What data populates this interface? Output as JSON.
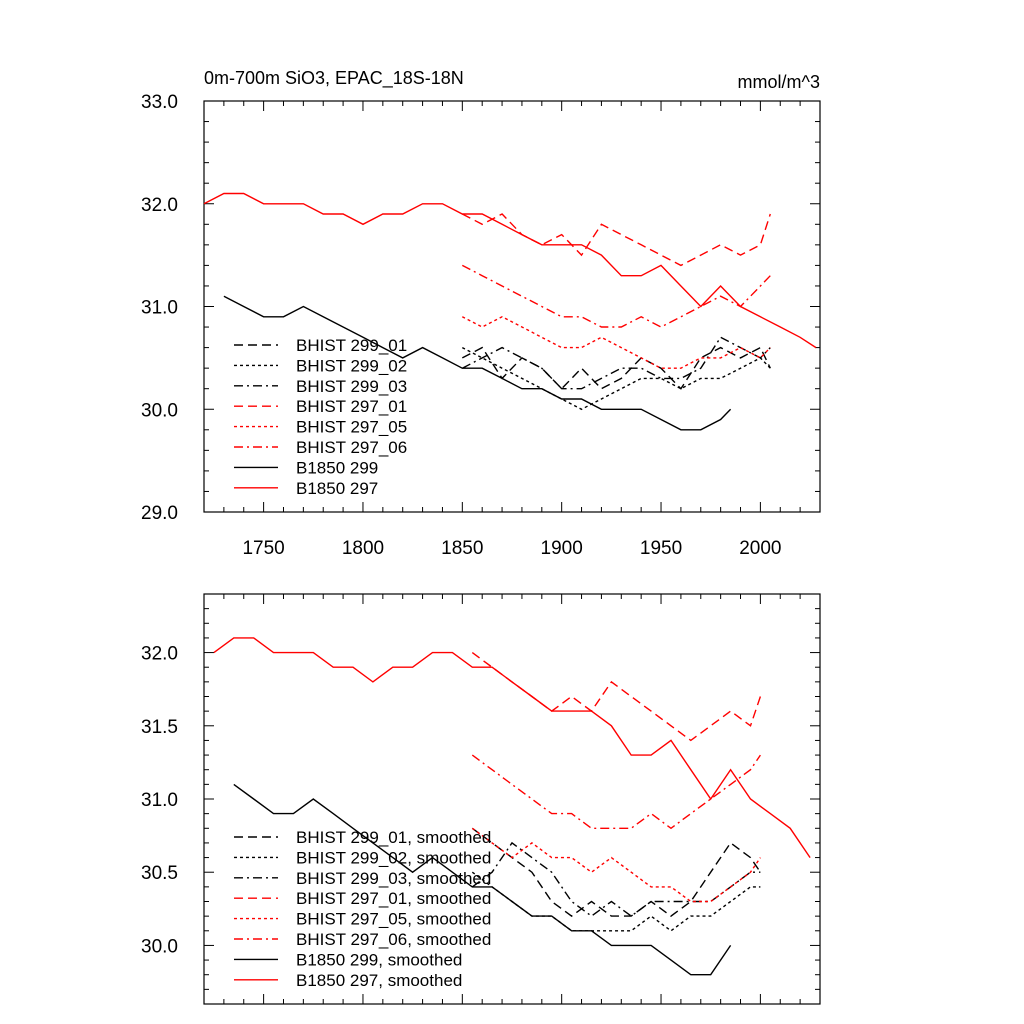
{
  "figure": {
    "background": "#ffffff"
  },
  "chart_data": [
    {
      "type": "line",
      "title": "0m-700m SiO3, EPAC_18S-18N",
      "units": "mmol/m^3",
      "xlim": [
        1720,
        2030
      ],
      "ylim": [
        29.0,
        33.0
      ],
      "x_ticks": [
        1750,
        1800,
        1850,
        1900,
        1950,
        2000
      ],
      "y_ticks": [
        29.0,
        30.0,
        31.0,
        32.0,
        33.0
      ],
      "y_tick_labels": [
        "29.0",
        "30.0",
        "31.0",
        "32.0",
        "33.0"
      ],
      "legend_placement": "lower-left",
      "series": [
        {
          "name": "BHIST 299_01",
          "color": "#000000",
          "dash": "dash",
          "x": [
            1850,
            1860,
            1870,
            1880,
            1890,
            1900,
            1910,
            1920,
            1930,
            1940,
            1950,
            1960,
            1970,
            1980,
            1990,
            2000,
            2005
          ],
          "y": [
            30.5,
            30.6,
            30.3,
            30.5,
            30.4,
            30.2,
            30.4,
            30.2,
            30.3,
            30.5,
            30.4,
            30.2,
            30.5,
            30.6,
            30.5,
            30.6,
            30.4
          ]
        },
        {
          "name": "BHIST 299_02",
          "color": "#000000",
          "dash": "dot",
          "x": [
            1850,
            1860,
            1870,
            1880,
            1890,
            1900,
            1910,
            1920,
            1930,
            1940,
            1950,
            1960,
            1970,
            1980,
            1990,
            2000,
            2005
          ],
          "y": [
            30.6,
            30.5,
            30.4,
            30.3,
            30.2,
            30.1,
            30.0,
            30.1,
            30.2,
            30.3,
            30.3,
            30.2,
            30.3,
            30.3,
            30.4,
            30.5,
            30.4
          ]
        },
        {
          "name": "BHIST 299_03",
          "color": "#000000",
          "dash": "dashdot",
          "x": [
            1850,
            1860,
            1870,
            1880,
            1890,
            1900,
            1910,
            1920,
            1930,
            1940,
            1950,
            1960,
            1970,
            1980,
            1990,
            2000,
            2005
          ],
          "y": [
            30.4,
            30.5,
            30.6,
            30.5,
            30.4,
            30.2,
            30.2,
            30.3,
            30.4,
            30.4,
            30.3,
            30.3,
            30.4,
            30.7,
            30.6,
            30.5,
            30.6
          ]
        },
        {
          "name": "BHIST 297_01",
          "color": "#ff0000",
          "dash": "dash",
          "x": [
            1850,
            1860,
            1870,
            1880,
            1890,
            1900,
            1910,
            1920,
            1930,
            1940,
            1950,
            1960,
            1970,
            1980,
            1990,
            2000,
            2005
          ],
          "y": [
            31.9,
            31.8,
            31.9,
            31.7,
            31.6,
            31.7,
            31.5,
            31.8,
            31.7,
            31.6,
            31.5,
            31.4,
            31.5,
            31.6,
            31.5,
            31.6,
            31.9
          ]
        },
        {
          "name": "BHIST 297_05",
          "color": "#ff0000",
          "dash": "dot",
          "x": [
            1850,
            1860,
            1870,
            1880,
            1890,
            1900,
            1910,
            1920,
            1930,
            1940,
            1950,
            1960,
            1970,
            1980,
            1990,
            2000,
            2005
          ],
          "y": [
            30.9,
            30.8,
            30.9,
            30.8,
            30.7,
            30.6,
            30.6,
            30.7,
            30.6,
            30.5,
            30.4,
            30.4,
            30.5,
            30.5,
            30.6,
            30.5,
            30.6
          ]
        },
        {
          "name": "BHIST 297_06",
          "color": "#ff0000",
          "dash": "dashdot",
          "x": [
            1850,
            1860,
            1870,
            1880,
            1890,
            1900,
            1910,
            1920,
            1930,
            1940,
            1950,
            1960,
            1970,
            1980,
            1990,
            2000,
            2005
          ],
          "y": [
            31.4,
            31.3,
            31.2,
            31.1,
            31.0,
            30.9,
            30.9,
            30.8,
            30.8,
            30.9,
            30.8,
            30.9,
            31.0,
            31.1,
            31.0,
            31.2,
            31.3
          ]
        },
        {
          "name": "B1850 299",
          "color": "#000000",
          "dash": "solid",
          "x": [
            1730,
            1740,
            1750,
            1760,
            1770,
            1780,
            1790,
            1800,
            1810,
            1820,
            1830,
            1840,
            1850,
            1860,
            1870,
            1880,
            1890,
            1900,
            1910,
            1920,
            1930,
            1940,
            1950,
            1960,
            1970,
            1980,
            1985
          ],
          "y": [
            31.1,
            31.0,
            30.9,
            30.9,
            31.0,
            30.9,
            30.8,
            30.7,
            30.6,
            30.5,
            30.6,
            30.5,
            30.4,
            30.4,
            30.3,
            30.2,
            30.2,
            30.1,
            30.1,
            30.0,
            30.0,
            30.0,
            29.9,
            29.8,
            29.8,
            29.9,
            30.0
          ]
        },
        {
          "name": "B1850 297",
          "color": "#ff0000",
          "dash": "solid",
          "x": [
            1720,
            1730,
            1740,
            1750,
            1760,
            1770,
            1780,
            1790,
            1800,
            1810,
            1820,
            1830,
            1840,
            1850,
            1860,
            1870,
            1880,
            1890,
            1900,
            1910,
            1920,
            1930,
            1940,
            1950,
            1960,
            1970,
            1980,
            1990,
            2000,
            2010,
            2020,
            2028
          ],
          "y": [
            32.0,
            32.1,
            32.1,
            32.0,
            32.0,
            32.0,
            31.9,
            31.9,
            31.8,
            31.9,
            31.9,
            32.0,
            32.0,
            31.9,
            31.9,
            31.8,
            31.7,
            31.6,
            31.6,
            31.6,
            31.5,
            31.3,
            31.3,
            31.4,
            31.2,
            31.0,
            31.2,
            31.0,
            30.9,
            30.8,
            30.7,
            30.6
          ]
        }
      ]
    },
    {
      "type": "line",
      "title": "",
      "units": "",
      "xlim": [
        1720,
        2030
      ],
      "ylim": [
        29.6,
        32.4
      ],
      "x_ticks": [
        1750,
        1800,
        1850,
        1900,
        1950,
        2000
      ],
      "y_ticks": [
        30.0,
        30.5,
        31.0,
        31.5,
        32.0
      ],
      "y_tick_labels": [
        "30.0",
        "30.5",
        "31.0",
        "31.5",
        "32.0"
      ],
      "legend_placement": "lower-left",
      "series": [
        {
          "name": "BHIST 299_01, smoothed",
          "color": "#000000",
          "dash": "dash",
          "x": [
            1855,
            1865,
            1875,
            1885,
            1895,
            1905,
            1915,
            1925,
            1935,
            1945,
            1955,
            1965,
            1975,
            1985,
            1995,
            2000
          ],
          "y": [
            30.8,
            30.7,
            30.6,
            30.5,
            30.3,
            30.2,
            30.3,
            30.2,
            30.2,
            30.3,
            30.2,
            30.3,
            30.5,
            30.7,
            30.6,
            30.5
          ]
        },
        {
          "name": "BHIST 299_02, smoothed",
          "color": "#000000",
          "dash": "dot",
          "x": [
            1855,
            1865,
            1875,
            1885,
            1895,
            1905,
            1915,
            1925,
            1935,
            1945,
            1955,
            1965,
            1975,
            1985,
            1995,
            2000
          ],
          "y": [
            30.5,
            30.4,
            30.3,
            30.2,
            30.2,
            30.1,
            30.1,
            30.1,
            30.1,
            30.2,
            30.1,
            30.2,
            30.2,
            30.3,
            30.4,
            30.4
          ]
        },
        {
          "name": "BHIST 299_03, smoothed",
          "color": "#000000",
          "dash": "dashdot",
          "x": [
            1855,
            1865,
            1875,
            1885,
            1895,
            1905,
            1915,
            1925,
            1935,
            1945,
            1955,
            1965,
            1975,
            1985,
            1995,
            2000
          ],
          "y": [
            30.4,
            30.5,
            30.7,
            30.6,
            30.5,
            30.3,
            30.2,
            30.3,
            30.2,
            30.3,
            30.3,
            30.3,
            30.3,
            30.4,
            30.5,
            30.5
          ]
        },
        {
          "name": "BHIST 297_01, smoothed",
          "color": "#ff0000",
          "dash": "dash",
          "x": [
            1855,
            1865,
            1875,
            1885,
            1895,
            1905,
            1915,
            1925,
            1935,
            1945,
            1955,
            1965,
            1975,
            1985,
            1995,
            2000
          ],
          "y": [
            32.0,
            31.9,
            31.8,
            31.7,
            31.6,
            31.7,
            31.6,
            31.8,
            31.7,
            31.6,
            31.5,
            31.4,
            31.5,
            31.6,
            31.5,
            31.7
          ]
        },
        {
          "name": "BHIST 297_05, smoothed",
          "color": "#ff0000",
          "dash": "dot",
          "x": [
            1855,
            1865,
            1875,
            1885,
            1895,
            1905,
            1915,
            1925,
            1935,
            1945,
            1955,
            1965,
            1975,
            1985,
            1995,
            2000
          ],
          "y": [
            30.8,
            30.7,
            30.6,
            30.7,
            30.6,
            30.6,
            30.5,
            30.6,
            30.5,
            30.4,
            30.4,
            30.3,
            30.3,
            30.4,
            30.5,
            30.6
          ]
        },
        {
          "name": "BHIST 297_06, smoothed",
          "color": "#ff0000",
          "dash": "dashdot",
          "x": [
            1855,
            1865,
            1875,
            1885,
            1895,
            1905,
            1915,
            1925,
            1935,
            1945,
            1955,
            1965,
            1975,
            1985,
            1995,
            2000
          ],
          "y": [
            31.3,
            31.2,
            31.1,
            31.0,
            30.9,
            30.9,
            30.8,
            30.8,
            30.8,
            30.9,
            30.8,
            30.9,
            31.0,
            31.1,
            31.2,
            31.3
          ]
        },
        {
          "name": "B1850 299, smoothed",
          "color": "#000000",
          "dash": "solid",
          "x": [
            1735,
            1745,
            1755,
            1765,
            1775,
            1785,
            1795,
            1805,
            1815,
            1825,
            1835,
            1845,
            1855,
            1865,
            1875,
            1885,
            1895,
            1905,
            1915,
            1925,
            1935,
            1945,
            1955,
            1965,
            1975,
            1985
          ],
          "y": [
            31.1,
            31.0,
            30.9,
            30.9,
            31.0,
            30.9,
            30.8,
            30.7,
            30.6,
            30.5,
            30.6,
            30.5,
            30.4,
            30.4,
            30.3,
            30.2,
            30.2,
            30.1,
            30.1,
            30.0,
            30.0,
            30.0,
            29.9,
            29.8,
            29.8,
            30.0
          ]
        },
        {
          "name": "B1850 297, smoothed",
          "color": "#ff0000",
          "dash": "solid",
          "x": [
            1725,
            1735,
            1745,
            1755,
            1765,
            1775,
            1785,
            1795,
            1805,
            1815,
            1825,
            1835,
            1845,
            1855,
            1865,
            1875,
            1885,
            1895,
            1905,
            1915,
            1925,
            1935,
            1945,
            1955,
            1965,
            1975,
            1985,
            1995,
            2005,
            2015,
            2025
          ],
          "y": [
            32.0,
            32.1,
            32.1,
            32.0,
            32.0,
            32.0,
            31.9,
            31.9,
            31.8,
            31.9,
            31.9,
            32.0,
            32.0,
            31.9,
            31.9,
            31.8,
            31.7,
            31.6,
            31.6,
            31.6,
            31.5,
            31.3,
            31.3,
            31.4,
            31.2,
            31.0,
            31.2,
            31.0,
            30.9,
            30.8,
            30.6
          ]
        }
      ]
    }
  ]
}
